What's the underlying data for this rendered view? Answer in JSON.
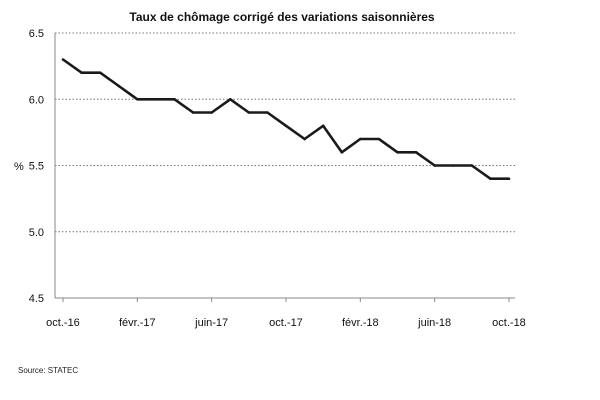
{
  "chart_data": {
    "type": "line",
    "title": "Taux de chômage corrigé des variations saisonnières",
    "ylabel": "%",
    "ylim": [
      4.5,
      6.5
    ],
    "yticks": [
      "4.5",
      "5.0",
      "5.5",
      "6.0",
      "6.5"
    ],
    "x": [
      "oct.-16",
      "nov.-16",
      "déc.-16",
      "janv.-17",
      "févr.-17",
      "mars-17",
      "avr.-17",
      "mai-17",
      "juin-17",
      "juil.-17",
      "août-17",
      "sept.-17",
      "oct.-17",
      "nov.-17",
      "déc.-17",
      "janv.-18",
      "févr.-18",
      "mars-18",
      "avr.-18",
      "mai-18",
      "juin-18",
      "juil.-18",
      "août-18",
      "sept.-18",
      "oct.-18"
    ],
    "xtick_labels": [
      "oct.-16",
      "févr.-17",
      "juin-17",
      "oct.-17",
      "févr.-18",
      "juin-18",
      "oct.-18"
    ],
    "grid": true,
    "series": [
      {
        "values": [
          6.3,
          6.2,
          6.2,
          6.1,
          6.0,
          6.0,
          6.0,
          5.9,
          5.9,
          6.0,
          5.9,
          5.9,
          5.8,
          5.7,
          5.8,
          5.6,
          5.7,
          5.7,
          5.6,
          5.6,
          5.5,
          5.5,
          5.5,
          5.4,
          5.4
        ],
        "color": "#1a1a1a"
      }
    ]
  },
  "source": "Source: STATEC"
}
